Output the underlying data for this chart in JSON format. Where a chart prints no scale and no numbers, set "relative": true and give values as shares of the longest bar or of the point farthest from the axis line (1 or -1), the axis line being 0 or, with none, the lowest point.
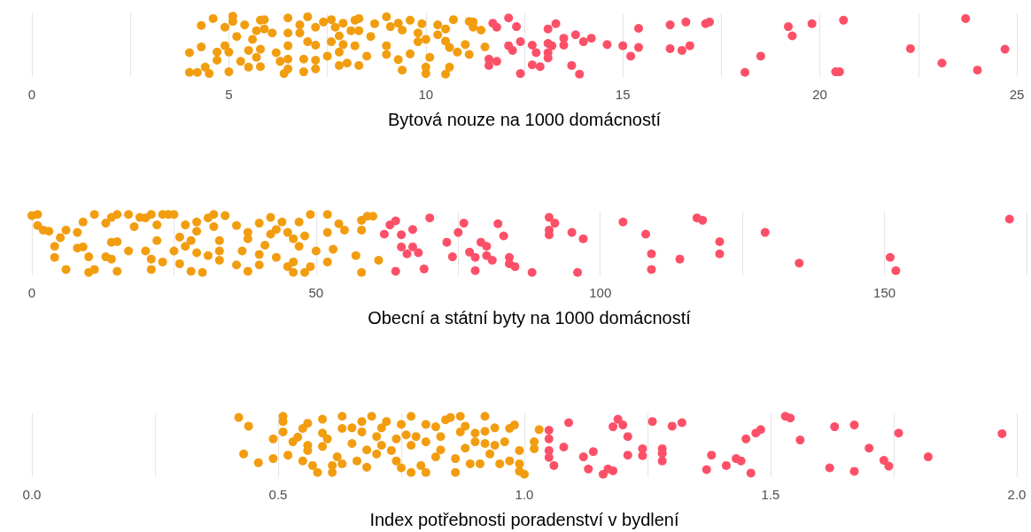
{
  "chart_data": [
    {
      "type": "scatter",
      "xlabel": "Bytová nouze na 1000 domácností",
      "relative": true,
      "grid": "x",
      "tick_labels": "x",
      "marker": "circle",
      "xlim": [
        0,
        25
      ],
      "xticks": [
        0,
        {
          "value": 2.5,
          "label": null
        },
        5,
        {
          "value": 7.5,
          "label": null
        },
        10,
        {
          "value": 12.5,
          "label": null
        },
        15,
        {
          "value": 17.5,
          "label": null
        },
        20,
        {
          "value": 22.5,
          "label": null
        },
        25
      ],
      "series": [
        {
          "color": "#f29d0f",
          "x": [
            4.0,
            4.0,
            4.2,
            4.3,
            4.3,
            4.4,
            4.5,
            4.6,
            4.7,
            4.7,
            4.9,
            4.9,
            5.0,
            5.1,
            5.1,
            5.0,
            5.2,
            5.3,
            5.4,
            5.5,
            5.5,
            5.6,
            5.7,
            5.7,
            5.8,
            5.9,
            5.8,
            5.8,
            5.9,
            6.1,
            6.2,
            6.3,
            6.4,
            6.5,
            6.5,
            6.5,
            6.5,
            6.5,
            6.8,
            6.8,
            6.9,
            6.9,
            7.0,
            7.0,
            7.2,
            7.2,
            7.2,
            7.2,
            7.4,
            7.5,
            7.6,
            7.6,
            7.7,
            7.8,
            7.8,
            7.9,
            7.9,
            7.8,
            8.0,
            8.1,
            8.2,
            8.3,
            8.2,
            8.3,
            8.3,
            8.6,
            8.7,
            8.5,
            9.0,
            9.0,
            9.0,
            9.1,
            9.3,
            9.4,
            9.3,
            9.4,
            9.6,
            9.6,
            9.8,
            9.8,
            9.9,
            10.0,
            10.1,
            10.0,
            10.0,
            10.3,
            10.3,
            10.5,
            10.5,
            10.6,
            10.7,
            10.6,
            10.5,
            10.8,
            11.0,
            11.1,
            11.1,
            11.2,
            11.2,
            11.4,
            11.5
          ],
          "values": [
            0.37,
            0.03,
            0.03,
            0.84,
            0.47,
            0.12,
            0.01,
            0.96,
            0.24,
            0.38,
            0.81,
            0.49,
            0.04,
            1.0,
            0.91,
            0.38,
            0.65,
            0.22,
            0.85,
            0.41,
            0.12,
            0.6,
            0.75,
            0.29,
            0.93,
            0.94,
            0.43,
            0.13,
            0.78,
            0.71,
            0.37,
            0.22,
            0.01,
            0.97,
            0.71,
            0.49,
            0.09,
            0.26,
            0.85,
            0.71,
            0.26,
            0.04,
            0.99,
            0.56,
            0.81,
            0.5,
            0.24,
            0.09,
            0.9,
            0.31,
            0.56,
            0.94,
            0.81,
            0.66,
            0.38,
            0.51,
            0.88,
            0.15,
            0.19,
            0.75,
            0.49,
            0.15,
            0.93,
            0.96,
            0.75,
            0.65,
            0.87,
            0.31,
            0.99,
            0.49,
            0.34,
            0.82,
            0.88,
            0.76,
            0.25,
            0.07,
            0.93,
            0.35,
            0.56,
            0.71,
            0.87,
            0.6,
            0.29,
            0.12,
            0.01,
            0.85,
            0.68,
            0.78,
            0.57,
            0.46,
            0.94,
            0.12,
            0.0,
            0.38,
            0.51,
            0.34,
            0.91,
            0.9,
            0.81,
            0.76,
            0.47
          ]
        },
        {
          "color": "#fc5068",
          "x": [
            11.7,
            11.8,
            12.1,
            12.1,
            11.6,
            11.8,
            11.6,
            12.3,
            12.2,
            12.4,
            12.4,
            12.7,
            12.8,
            12.7,
            12.9,
            13.1,
            13.2,
            13.1,
            13.1,
            13.1,
            13.3,
            13.5,
            13.5,
            13.7,
            13.8,
            13.9,
            14.0,
            14.2,
            14.6,
            15.0,
            15.4,
            15.4,
            15.2,
            16.2,
            16.2,
            16.5,
            16.7,
            16.6,
            17.1,
            17.2,
            18.1,
            18.5,
            19.2,
            19.3,
            19.8,
            20.6,
            20.4,
            20.5,
            22.3,
            23.1,
            23.7,
            24.0,
            24.7
          ],
          "values": [
            0.88,
            0.81,
            0.97,
            0.49,
            0.26,
            0.22,
            0.15,
            0.82,
            0.41,
            0.56,
            0.01,
            0.5,
            0.37,
            0.16,
            0.13,
            0.53,
            0.49,
            0.37,
            0.28,
            0.78,
            0.87,
            0.62,
            0.5,
            0.15,
            0.68,
            0.0,
            0.56,
            0.62,
            0.51,
            0.49,
            0.79,
            0.46,
            0.31,
            0.85,
            0.44,
            0.41,
            0.49,
            0.9,
            0.87,
            0.9,
            0.03,
            0.31,
            0.82,
            0.66,
            0.87,
            0.93,
            0.04,
            0.04,
            0.44,
            0.19,
            0.96,
            0.07,
            0.43
          ]
        }
      ]
    },
    {
      "type": "scatter",
      "xlabel": "Obecní a státní byty na 1000 domácností",
      "relative": true,
      "grid": "x",
      "tick_labels": "x",
      "marker": "circle",
      "xlim": [
        0,
        175
      ],
      "xticks": [
        0,
        {
          "value": 25,
          "label": null
        },
        50,
        {
          "value": 75,
          "label": null
        },
        100,
        {
          "value": 125,
          "label": null
        },
        150,
        {
          "value": 175,
          "label": null
        }
      ],
      "series": [
        {
          "color": "#f29d0f",
          "x": [
            0,
            1,
            1,
            2,
            3,
            4,
            4,
            5,
            6,
            6,
            8,
            8,
            9,
            9,
            10,
            10,
            11,
            11,
            13,
            14,
            13,
            14,
            15,
            14,
            15,
            15,
            17,
            17,
            19,
            18,
            20,
            20,
            21,
            21,
            22,
            22,
            23,
            21,
            23,
            24,
            25,
            25,
            26,
            26,
            27,
            27,
            28,
            28,
            29,
            29,
            29,
            30,
            31,
            31,
            32,
            32,
            33,
            33,
            33,
            34,
            36,
            36,
            37,
            38,
            38,
            38,
            40,
            40,
            40,
            41,
            42,
            42,
            43,
            43,
            44,
            45,
            45,
            46,
            46,
            46,
            47,
            47,
            48,
            48,
            49,
            49,
            50,
            52,
            52,
            52,
            53,
            54,
            55,
            57,
            58,
            58,
            58,
            59,
            61,
            60
          ],
          "values": [
            0.98,
            1.0,
            0.81,
            0.73,
            0.71,
            0.45,
            0.26,
            0.6,
            0.73,
            0.05,
            0.42,
            0.69,
            0.87,
            0.44,
            0.27,
            0.0,
            1.0,
            0.05,
            0.85,
            0.52,
            0.27,
            0.23,
            0.02,
            0.95,
            0.53,
            1.0,
            1.0,
            0.37,
            0.95,
            0.79,
            0.94,
            0.37,
            0.23,
            1.0,
            0.55,
            0.82,
            1.0,
            0.05,
            0.18,
            1.0,
            0.37,
            1.0,
            0.61,
            0.15,
            0.82,
            0.45,
            0.55,
            0.02,
            0.34,
            0.71,
            0.87,
            0.0,
            0.94,
            0.29,
            1.0,
            0.79,
            0.37,
            0.21,
            0.55,
            0.98,
            0.13,
            0.81,
            0.37,
            0.69,
            0.58,
            0.02,
            0.31,
            0.85,
            0.13,
            0.47,
            0.95,
            0.66,
            0.26,
            0.74,
            0.87,
            0.1,
            0.69,
            0.58,
            0.18,
            0.0,
            0.87,
            0.45,
            0.63,
            0.0,
            1.0,
            0.1,
            0.37,
            1.0,
            0.69,
            0.18,
            0.4,
            0.84,
            0.73,
            0.29,
            0.9,
            0.73,
            0.0,
            0.97,
            0.21,
            0.97
          ]
        },
        {
          "color": "#fc5068",
          "x": [
            62,
            63,
            64,
            65,
            67,
            65,
            67,
            66,
            68,
            64,
            69,
            70,
            73,
            74,
            75,
            76,
            77,
            78,
            79,
            80,
            80,
            81,
            78,
            82,
            83,
            84,
            84,
            85,
            88,
            91,
            92,
            91,
            91,
            95,
            97,
            96,
            104,
            108,
            109,
            109,
            114,
            117,
            118,
            121,
            121,
            129,
            135,
            151,
            152,
            172
          ],
          "values": [
            0.66,
            0.82,
            0.89,
            0.65,
            0.74,
            0.44,
            0.44,
            0.32,
            0.34,
            0.02,
            0.06,
            0.94,
            0.52,
            0.27,
            0.69,
            0.85,
            0.35,
            0.26,
            0.52,
            0.45,
            0.29,
            0.21,
            0.03,
            0.84,
            0.63,
            0.26,
            0.15,
            0.1,
            0.0,
            0.95,
            0.85,
            0.73,
            0.65,
            0.69,
            0.58,
            0.0,
            0.87,
            0.66,
            0.32,
            0.05,
            0.23,
            0.94,
            0.9,
            0.53,
            0.32,
            0.69,
            0.16,
            0.26,
            0.03,
            0.92
          ]
        }
      ]
    },
    {
      "type": "scatter",
      "xlabel": "Index potřebnosti poradenství v bydlení",
      "relative": true,
      "grid": "x",
      "tick_labels": "x",
      "marker": "circle",
      "xlim": [
        0,
        2
      ],
      "xticks": [
        {
          "value": 0,
          "label": "0.0"
        },
        {
          "value": 0.25,
          "label": null
        },
        {
          "value": 0.5,
          "label": "0.5"
        },
        {
          "value": 0.75,
          "label": null
        },
        {
          "value": 1,
          "label": "1.0"
        },
        {
          "value": 1.25,
          "label": null
        },
        {
          "value": 1.5,
          "label": "1.5"
        },
        {
          "value": 1.75,
          "label": null
        },
        {
          "value": 2,
          "label": "2.0"
        }
      ],
      "series": [
        {
          "color": "#f29d0f",
          "x": [
            0.42,
            0.44,
            0.43,
            0.46,
            0.49,
            0.49,
            0.51,
            0.51,
            0.51,
            0.52,
            0.53,
            0.54,
            0.55,
            0.55,
            0.56,
            0.56,
            0.56,
            0.57,
            0.58,
            0.59,
            0.59,
            0.59,
            0.6,
            0.61,
            0.61,
            0.62,
            0.63,
            0.63,
            0.63,
            0.65,
            0.65,
            0.66,
            0.67,
            0.67,
            0.68,
            0.68,
            0.69,
            0.7,
            0.7,
            0.71,
            0.71,
            0.72,
            0.73,
            0.74,
            0.74,
            0.75,
            0.75,
            0.76,
            0.77,
            0.77,
            0.77,
            0.78,
            0.79,
            0.8,
            0.8,
            0.8,
            0.82,
            0.82,
            0.83,
            0.83,
            0.84,
            0.85,
            0.86,
            0.86,
            0.87,
            0.87,
            0.88,
            0.88,
            0.89,
            0.9,
            0.9,
            0.91,
            0.92,
            0.92,
            0.92,
            0.93,
            0.94,
            0.94,
            0.95,
            0.96,
            0.97,
            0.97,
            0.98,
            0.99,
            0.99,
            1.0,
            0.99,
            1.02,
            1.02,
            1.03
          ],
          "values": [
            0.98,
            0.83,
            0.35,
            0.2,
            0.61,
            0.27,
            1.0,
            0.91,
            0.73,
            0.33,
            0.56,
            0.64,
            0.79,
            0.23,
            0.88,
            0.5,
            0.41,
            0.15,
            0.03,
            0.95,
            0.71,
            0.48,
            0.61,
            0.15,
            0.03,
            0.3,
            1.0,
            0.79,
            0.18,
            0.8,
            0.53,
            0.23,
            0.91,
            0.73,
            0.42,
            0.12,
            1.0,
            0.65,
            0.35,
            0.8,
            0.5,
            0.91,
            0.41,
            0.61,
            0.23,
            0.86,
            0.11,
            0.68,
            1.0,
            0.5,
            0.03,
            0.65,
            0.15,
            0.86,
            0.56,
            0.03,
            0.3,
            0.82,
            0.65,
            0.42,
            0.94,
            0.98,
            0.27,
            0.03,
            1.0,
            0.73,
            0.83,
            0.45,
            0.18,
            0.71,
            0.56,
            0.18,
            1.0,
            0.74,
            0.53,
            0.35,
            0.8,
            0.5,
            0.18,
            0.56,
            0.79,
            0.23,
            0.85,
            0.41,
            0.18,
            0.0,
            0.05,
            0.56,
            0.44,
            0.77
          ]
        },
        {
          "color": "#fc5068",
          "x": [
            1.05,
            1.05,
            1.05,
            1.05,
            1.06,
            1.08,
            1.09,
            1.12,
            1.13,
            1.14,
            1.16,
            1.17,
            1.18,
            1.18,
            1.19,
            1.2,
            1.21,
            1.21,
            1.24,
            1.24,
            1.26,
            1.28,
            1.28,
            1.28,
            1.3,
            1.32,
            1.37,
            1.38,
            1.41,
            1.43,
            1.44,
            1.46,
            1.45,
            1.47,
            1.48,
            1.53,
            1.54,
            1.56,
            1.62,
            1.63,
            1.67,
            1.67,
            1.7,
            1.73,
            1.74,
            1.76,
            1.82,
            1.97
          ],
          "values": [
            0.76,
            0.61,
            0.41,
            0.29,
            0.15,
            0.47,
            0.89,
            0.3,
            0.09,
            0.39,
            0.0,
            0.09,
            0.06,
            0.82,
            0.95,
            0.85,
            0.65,
            0.33,
            0.44,
            0.32,
            0.91,
            0.44,
            0.36,
            0.23,
            0.83,
            0.89,
            0.08,
            0.33,
            0.15,
            0.27,
            0.23,
            0.02,
            0.61,
            0.71,
            0.77,
            1.0,
            0.97,
            0.59,
            0.11,
            0.82,
            0.85,
            0.05,
            0.45,
            0.24,
            0.14,
            0.71,
            0.3,
            0.7
          ]
        }
      ]
    }
  ]
}
